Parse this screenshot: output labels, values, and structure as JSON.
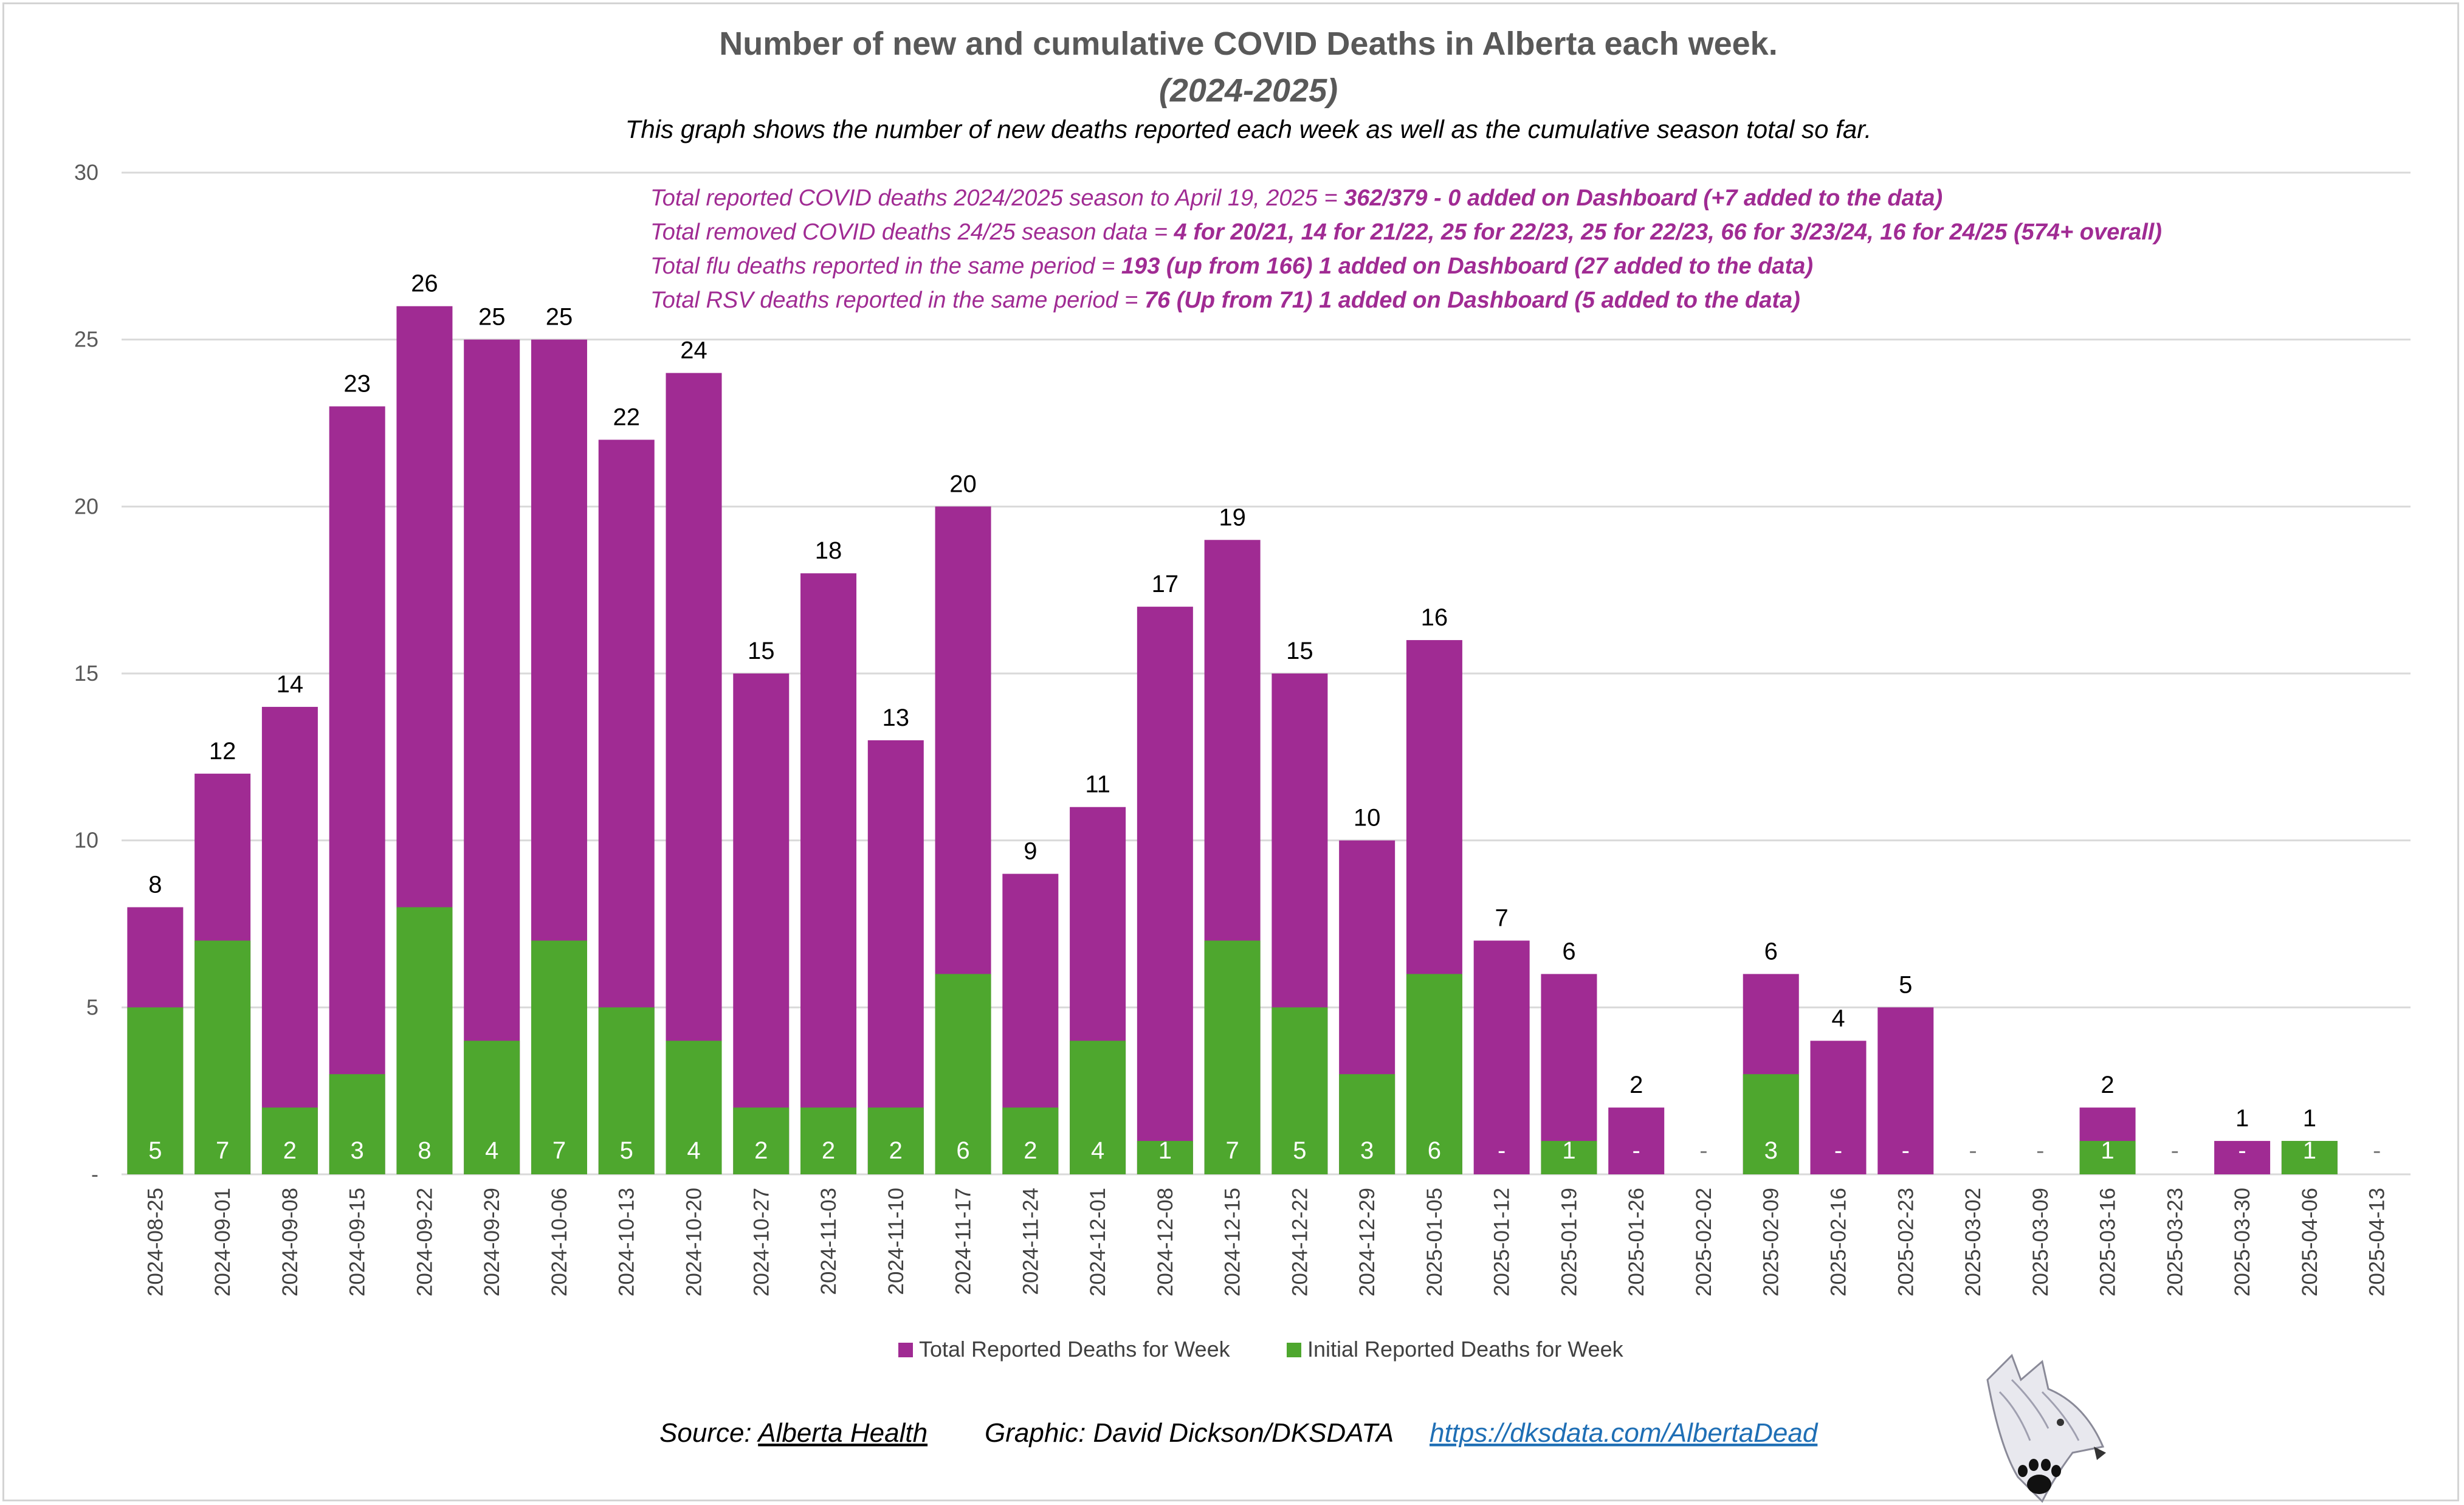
{
  "chart_data": {
    "type": "bar",
    "stacked_overlay": true,
    "title": "Number of new and cumulative COVID Deaths in Alberta each week.",
    "subtitle": "(2024-2025)",
    "description": "This graph shows the number of new deaths reported each week as well as the cumulative season total so far.",
    "ylim": [
      0,
      30
    ],
    "y_ticks": [
      "-",
      "5",
      "10",
      "15",
      "20",
      "25",
      "30"
    ],
    "grid": true,
    "legend_position": "bottom",
    "categories": [
      "2024-08-25",
      "2024-09-01",
      "2024-09-08",
      "2024-09-15",
      "2024-09-22",
      "2024-09-29",
      "2024-10-06",
      "2024-10-13",
      "2024-10-20",
      "2024-10-27",
      "2024-11-03",
      "2024-11-10",
      "2024-11-17",
      "2024-11-24",
      "2024-12-01",
      "2024-12-08",
      "2024-12-15",
      "2024-12-22",
      "2024-12-29",
      "2025-01-05",
      "2025-01-12",
      "2025-01-19",
      "2025-01-26",
      "2025-02-02",
      "2025-02-09",
      "2025-02-16",
      "2025-02-23",
      "2025-03-02",
      "2025-03-09",
      "2025-03-16",
      "2025-03-23",
      "2025-03-30",
      "2025-04-06",
      "2025-04-13"
    ],
    "series": [
      {
        "name": "Total Reported Deaths for Week",
        "color": "#a02b93",
        "values": [
          8,
          12,
          14,
          23,
          26,
          25,
          25,
          22,
          24,
          15,
          18,
          13,
          20,
          9,
          11,
          17,
          19,
          15,
          10,
          16,
          7,
          6,
          2,
          0,
          6,
          4,
          5,
          0,
          0,
          2,
          0,
          1,
          1,
          0
        ]
      },
      {
        "name": "Initial Reported Deaths for Week",
        "color": "#4ea72e",
        "values": [
          5,
          7,
          2,
          3,
          8,
          4,
          7,
          5,
          4,
          2,
          2,
          2,
          6,
          2,
          4,
          1,
          7,
          5,
          3,
          6,
          0,
          1,
          0,
          0,
          3,
          0,
          0,
          0,
          0,
          1,
          0,
          0,
          1,
          0
        ]
      }
    ],
    "total_labels": [
      "8",
      "12",
      "14",
      "23",
      "26",
      "25",
      "25",
      "22",
      "24",
      "15",
      "18",
      "13",
      "20",
      "9",
      "11",
      "17",
      "19",
      "15",
      "10",
      "16",
      "7",
      "6",
      "2",
      "",
      "6",
      "4",
      "5",
      "",
      "",
      "2",
      "",
      "1",
      "1",
      ""
    ],
    "initial_labels": [
      "5",
      "7",
      "2",
      "3",
      "8",
      "4",
      "7",
      "5",
      "4",
      "2",
      "2",
      "2",
      "6",
      "2",
      "4",
      "1",
      "7",
      "5",
      "3",
      "6",
      "-",
      "1",
      "-",
      "-",
      "3",
      "-",
      "-",
      "-",
      "-",
      "1",
      "-",
      "-",
      "1",
      "-"
    ]
  },
  "notes": [
    {
      "plain": "Total reported COVID deaths 2024/2025 season to April 19, 2025 = ",
      "bold": " 362/379 - 0 added on Dashboard (+7 added to the data)"
    },
    {
      "plain": "Total removed COVID deaths 24/25 season data = ",
      "bold": " 4 for 20/21, 14 for 21/22, 25 for 22/23, 25 for 22/23, 66 for 3/23/24, 16 for 24/25 (574+ overall)"
    },
    {
      "plain": "Total flu deaths reported in the same period = ",
      "bold": "193 (up from 166) 1 added on Dashboard (27 added to the data)"
    },
    {
      "plain": "Total RSV deaths reported in the same period = ",
      "bold": "76 (Up from 71) 1 added on Dashboard (5 added to the data)"
    }
  ],
  "footer": {
    "source_prefix": "Source: ",
    "source_link": "Alberta Health",
    "graphic": "Graphic: David Dickson/DKSDATA",
    "url": "https://dksdata.com/AlbertaDead"
  },
  "colors": {
    "total": "#a02b93",
    "initial": "#4ea72e",
    "note_text": "#a02b93",
    "link": "#1f6fb5",
    "grid": "#d9d9d9"
  },
  "logo_icon": "wolf-with-paw-print-icon"
}
